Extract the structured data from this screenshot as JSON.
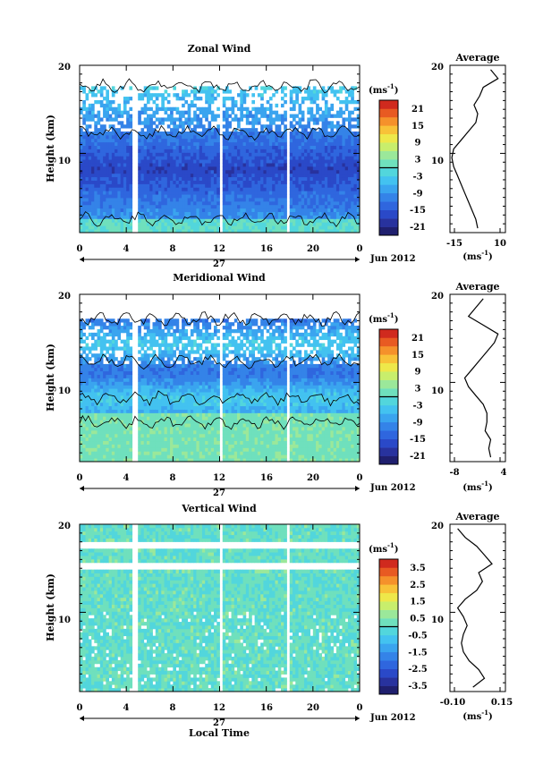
{
  "chart_data": [
    {
      "type": "heatmap",
      "title": "Zonal Wind",
      "ylabel": "Height (km)",
      "xlabel": "",
      "x_ticks": [
        "0",
        "4",
        "8",
        "12",
        "16",
        "20",
        "0"
      ],
      "y_ticks": [
        "20",
        "10"
      ],
      "xlim": [
        0,
        24
      ],
      "ylim": [
        1,
        20
      ],
      "date_center": "27",
      "date_right": "Jun 2012",
      "colorbar": {
        "unit": "(ms",
        "unit_exp": "-1",
        "ticks": [
          "21",
          "15",
          "9",
          "3",
          "-3",
          "-9",
          "-15",
          "-21"
        ],
        "range": [
          -24,
          24
        ]
      },
      "profile": {
        "title": "Average",
        "x_ticks": [
          "-15",
          "10"
        ],
        "xlim": [
          -18,
          12
        ],
        "y_ticks": [
          "20",
          "10"
        ],
        "unit": "(ms",
        "unit_exp": "-1",
        "heights": [
          1.5,
          2.5,
          3.5,
          4.5,
          5.5,
          6.5,
          7.5,
          8.5,
          9.5,
          10.5,
          11.5,
          12.5,
          13.5,
          14.5,
          15.5,
          16.5,
          17.5,
          18.5,
          19.5
        ],
        "values": [
          -3,
          -4,
          -6,
          -8,
          -10,
          -12,
          -14,
          -16,
          -17,
          -16,
          -12,
          -8,
          -4,
          -3,
          -5,
          -2,
          0,
          8,
          4
        ]
      }
    },
    {
      "type": "heatmap",
      "title": "Meridional Wind",
      "ylabel": "Height (km)",
      "xlabel": "",
      "x_ticks": [
        "0",
        "4",
        "8",
        "12",
        "16",
        "20",
        "0"
      ],
      "y_ticks": [
        "20",
        "10"
      ],
      "xlim": [
        0,
        24
      ],
      "ylim": [
        1,
        20
      ],
      "date_center": "27",
      "date_right": "Jun 2012",
      "colorbar": {
        "unit": "(ms",
        "unit_exp": "-1",
        "ticks": [
          "21",
          "15",
          "9",
          "3",
          "-3",
          "-9",
          "-15",
          "-21"
        ],
        "range": [
          -24,
          24
        ]
      },
      "profile": {
        "title": "Average",
        "x_ticks": [
          "-8",
          "4"
        ],
        "xlim": [
          -10,
          5
        ],
        "y_ticks": [
          "20",
          "10"
        ],
        "unit": "(ms",
        "unit_exp": "-1",
        "heights": [
          1.5,
          2.5,
          3.5,
          4.5,
          5.5,
          6.5,
          7.5,
          8.5,
          9.5,
          10.5,
          11.5,
          12.5,
          13.5,
          14.5,
          15.5,
          16.5,
          17.5,
          18.5,
          19.5
        ],
        "values": [
          1,
          0.5,
          1,
          -0.5,
          0,
          0,
          -1,
          -3,
          -5,
          -6,
          -4,
          -2,
          0,
          2,
          3,
          -1,
          -5,
          -3,
          -1
        ]
      }
    },
    {
      "type": "heatmap",
      "title": "Vertical Wind",
      "ylabel": "Height (km)",
      "xlabel": "Local Time",
      "x_ticks": [
        "0",
        "4",
        "8",
        "12",
        "16",
        "20",
        "0"
      ],
      "y_ticks": [
        "20",
        "10"
      ],
      "xlim": [
        0,
        24
      ],
      "ylim": [
        1,
        20
      ],
      "date_center": "27",
      "date_right": "Jun 2012",
      "colorbar": {
        "unit": "(ms",
        "unit_exp": "-1",
        "ticks": [
          "3.5",
          "2.5",
          "1.5",
          "0.5",
          "-0.5",
          "-1.5",
          "-2.5",
          "-3.5"
        ],
        "range": [
          -4,
          4
        ]
      },
      "profile": {
        "title": "Average",
        "x_ticks": [
          "-0.10",
          "0.15"
        ],
        "xlim": [
          -0.12,
          0.17
        ],
        "y_ticks": [
          "20",
          "10"
        ],
        "unit": "(ms",
        "unit_exp": "-1",
        "heights": [
          1.5,
          2.5,
          3.5,
          4.5,
          5.5,
          6.5,
          7.5,
          8.5,
          9.5,
          10.5,
          11.5,
          12.5,
          13.5,
          14.5,
          15.5,
          16.5,
          17.5,
          18.5,
          19.5
        ],
        "values": [
          0,
          0.06,
          0.03,
          -0.02,
          -0.05,
          -0.06,
          -0.05,
          -0.03,
          -0.05,
          -0.08,
          -0.04,
          0.02,
          0.05,
          0.03,
          0.1,
          0.06,
          0.02,
          -0.04,
          -0.08
        ]
      }
    }
  ]
}
